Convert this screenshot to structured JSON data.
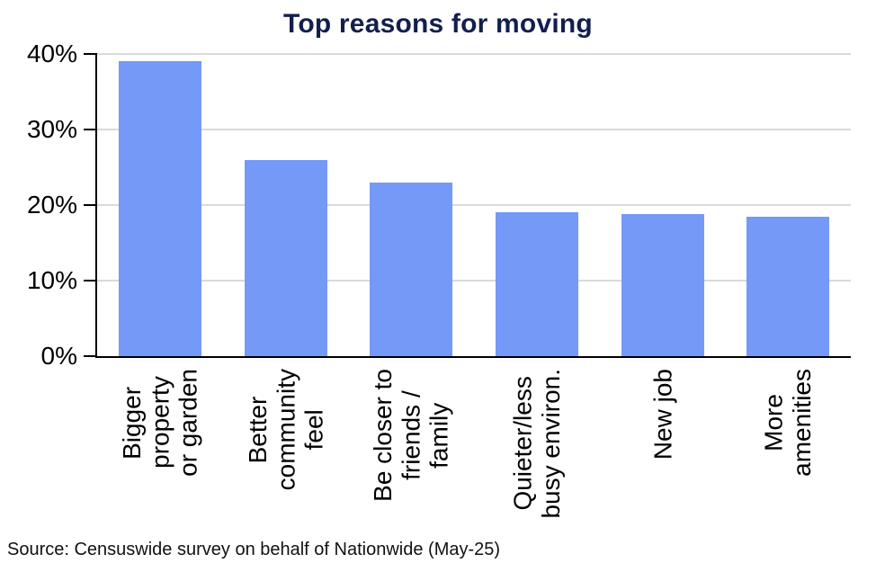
{
  "title": "Top reasons for moving",
  "source_note": "Source: Censuswide survey on behalf of Nationwide (May-25)",
  "colors": {
    "bar": "#7499F7",
    "title": "#121F4E",
    "gridline": "#DADADA",
    "axis": "#000000",
    "label": "#000000"
  },
  "y_axis": {
    "tick_labels": [
      "40%",
      "30%",
      "20%",
      "10%",
      "0%"
    ],
    "tick_values": [
      40,
      30,
      20,
      10,
      0
    ],
    "min": 0,
    "max": 40
  },
  "x_labels_display": [
    "Bigger\nproperty\nor garden",
    "Better\ncommunity\nfeel",
    "Be closer to\nfriends /\nfamily",
    "Quieter/less\nbusy environ.",
    "New job",
    "More\namenities"
  ],
  "chart_data": {
    "type": "bar",
    "title": "Top reasons for moving",
    "categories": [
      "Bigger property or garden",
      "Better community feel",
      "Be closer to friends / family",
      "Quieter/less busy environ.",
      "New job",
      "More amenities"
    ],
    "values": [
      39,
      26,
      23,
      19,
      18.8,
      18.5
    ],
    "xlabel": "",
    "ylabel": "",
    "ylim": [
      0,
      40
    ],
    "y_tick_step": 10,
    "grid": "horizontal",
    "legend": "none",
    "bar_color": "#7499F7",
    "source": "Censuswide survey on behalf of Nationwide (May-25)"
  }
}
